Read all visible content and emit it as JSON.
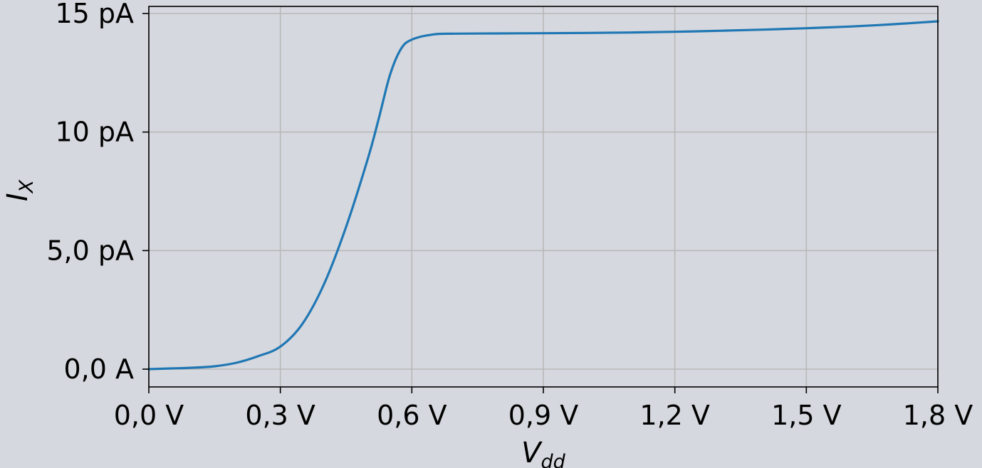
{
  "chart_data": {
    "type": "line",
    "title": "",
    "xlabel": {
      "main": "V",
      "sub": "dd"
    },
    "ylabel": {
      "main": "I",
      "sub": "X"
    },
    "xlim": [
      0.0,
      1.8
    ],
    "ylim": [
      -0.75,
      15.3
    ],
    "grid": true,
    "x_ticks": [
      {
        "value": 0.0,
        "label": "0,0 V"
      },
      {
        "value": 0.3,
        "label": "0,3 V"
      },
      {
        "value": 0.6,
        "label": "0,6 V"
      },
      {
        "value": 0.9,
        "label": "0,9 V"
      },
      {
        "value": 1.2,
        "label": "1,2 V"
      },
      {
        "value": 1.5,
        "label": "1,5 V"
      },
      {
        "value": 1.8,
        "label": "1,8 V"
      }
    ],
    "y_ticks": [
      {
        "value": 0.0,
        "label": "0,0 A"
      },
      {
        "value": 5.0,
        "label": "5,0 pA"
      },
      {
        "value": 10.0,
        "label": "10 pA"
      },
      {
        "value": 15.0,
        "label": "15 pA"
      }
    ],
    "series": [
      {
        "color": "#1f77b4",
        "x": [
          0.0,
          0.05,
          0.1,
          0.15,
          0.2,
          0.25,
          0.3,
          0.35,
          0.4,
          0.45,
          0.5,
          0.525,
          0.55,
          0.575,
          0.6,
          0.65,
          0.7,
          0.8,
          0.9,
          1.0,
          1.1,
          1.2,
          1.3,
          1.4,
          1.5,
          1.6,
          1.7,
          1.8
        ],
        "y": [
          0.0,
          0.03,
          0.06,
          0.12,
          0.27,
          0.55,
          0.95,
          1.9,
          3.6,
          6.0,
          8.9,
          10.6,
          12.4,
          13.5,
          13.9,
          14.12,
          14.15,
          14.16,
          14.17,
          14.18,
          14.2,
          14.23,
          14.27,
          14.32,
          14.38,
          14.45,
          14.55,
          14.67
        ]
      }
    ]
  }
}
